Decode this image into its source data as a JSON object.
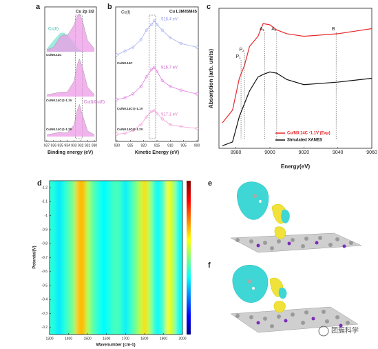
{
  "chart_data": [
    {
      "type": "line",
      "panel": "a",
      "title": "Cu 2p 3/2",
      "xlabel": "Binding energy (eV)",
      "annotations": [
        "Cu(II)",
        "Cu(I)/Cu(0)"
      ],
      "x": [
        937,
        936,
        935,
        934.5,
        934,
        933,
        932.5,
        932.2,
        931.8,
        931,
        930
      ],
      "xlim": [
        937.3,
        929.7
      ],
      "xticks": [
        937,
        936,
        935,
        934,
        933,
        932,
        931,
        930
      ],
      "highlight": [
        932.8,
        931.8
      ],
      "satellite": {
        "color": "#8fe8d8",
        "values": [
          0.08,
          0.3,
          0.5,
          0.5,
          0.45,
          0.25,
          0.1,
          0.05,
          0.02,
          0,
          0
        ]
      },
      "series": [
        {
          "name": "Cu/N0.14C",
          "color": "#ee9be6",
          "values": [
            0.05,
            0.12,
            0.4,
            0.45,
            0.42,
            0.7,
            0.95,
            1.0,
            0.85,
            0.3,
            0.08
          ]
        },
        {
          "name": "Cu/N0.14C@-1.1V",
          "color": "#ee9be6",
          "values": [
            0.05,
            0.08,
            0.12,
            0.12,
            0.12,
            0.4,
            0.85,
            1.0,
            0.8,
            0.25,
            0.05
          ]
        },
        {
          "name": "Cu/N0.14C@-1.2V",
          "color": "#ee9be6",
          "values": [
            0.05,
            0.08,
            0.12,
            0.1,
            0.1,
            0.3,
            0.7,
            0.85,
            0.6,
            0.15,
            0.05
          ]
        }
      ]
    },
    {
      "type": "scatter",
      "panel": "b",
      "title": "Cu L3M45M45",
      "xlabel": "Kinetic Energy (eV)",
      "annotations": [
        "Cu(I)",
        "916.4 eV",
        "916.7 eV",
        "917.1 eV"
      ],
      "x": [
        930,
        927,
        924,
        921,
        919,
        917,
        916,
        915,
        913,
        910,
        906,
        900
      ],
      "xlim": [
        930.5,
        899.5
      ],
      "xticks": [
        930,
        925,
        920,
        915,
        910,
        905,
        900
      ],
      "highlight": [
        918,
        915.5
      ],
      "series": [
        {
          "name": "Cu/N0.14C",
          "color": "#a5adf0",
          "values": [
            0.1,
            0.2,
            0.3,
            0.5,
            0.75,
            0.9,
            1.0,
            0.9,
            0.75,
            0.55,
            0.4,
            0.3
          ]
        },
        {
          "name": "Cu/N0.14C@-1.1V",
          "color": "#e07ae0",
          "values": [
            0.1,
            0.15,
            0.25,
            0.45,
            0.7,
            0.9,
            0.95,
            0.85,
            0.6,
            0.45,
            0.35,
            0.25
          ]
        },
        {
          "name": "Cu/N0.14C@-1.2V",
          "color": "#f29ad6",
          "values": [
            0.1,
            0.12,
            0.2,
            0.35,
            0.55,
            0.7,
            0.72,
            0.65,
            0.5,
            0.35,
            0.3,
            0.25
          ]
        }
      ]
    },
    {
      "type": "line",
      "panel": "c",
      "xlabel": "Energy(eV)",
      "ylabel": "Absorption (arb. units)",
      "x": [
        8972,
        8978,
        8982,
        8985,
        8988,
        8993,
        8996,
        9000,
        9004,
        9010,
        9020,
        9040,
        9060
      ],
      "xlim": [
        8970,
        9060
      ],
      "xticks": [
        8980,
        9000,
        9020,
        9040,
        9060
      ],
      "ylim": [
        0,
        1.1
      ],
      "markers": [
        {
          "text": "P",
          "sub": "1",
          "x": 8983
        },
        {
          "text": "P",
          "sub": "2",
          "x": 8985
        },
        {
          "text": "A",
          "sub": "1",
          "x": 8997
        },
        {
          "text": "A",
          "sub": "2",
          "x": 9004
        },
        {
          "text": "B",
          "sub": "",
          "x": 9039
        }
      ],
      "series": [
        {
          "name": "Cu/N0.14C -1.1V (Exp)",
          "color": "#e8262a",
          "values": [
            0.2,
            0.3,
            0.55,
            0.65,
            0.8,
            0.88,
            0.98,
            0.97,
            0.93,
            0.9,
            0.88,
            0.9,
            0.94
          ]
        },
        {
          "name": "Simulated XANES",
          "color": "#111111",
          "values": [
            0.02,
            0.05,
            0.25,
            0.35,
            0.45,
            0.56,
            0.58,
            0.6,
            0.59,
            0.54,
            0.5,
            0.52,
            0.55
          ]
        }
      ]
    },
    {
      "type": "heatmap",
      "panel": "d",
      "xlabel": "Wavenumber (cm-1)",
      "ylabel": "Potential(V)",
      "x": [
        1300,
        1325,
        1350,
        1375,
        1400,
        1425,
        1450,
        1475,
        1500,
        1525,
        1550,
        1575,
        1600,
        1625,
        1650,
        1675,
        1700,
        1725,
        1750,
        1775,
        1800,
        1825,
        1850,
        1875,
        1900,
        1925,
        1950,
        1975,
        2000
      ],
      "values": [
        0.42,
        0.4,
        0.35,
        0.4,
        0.45,
        0.5,
        0.68,
        0.7,
        0.55,
        0.47,
        0.42,
        0.38,
        0.38,
        0.42,
        0.45,
        0.42,
        0.36,
        0.42,
        0.48,
        0.55,
        0.66,
        0.55,
        0.42,
        0.37,
        0.45,
        0.62,
        0.55,
        0.4,
        0.36
      ],
      "zlim": [
        0,
        1
      ],
      "xlim": [
        1300,
        2000
      ],
      "xticks": [
        1300,
        1400,
        1500,
        1600,
        1700,
        1800,
        1900,
        2000
      ],
      "ylim": [
        -1.25,
        -0.15
      ],
      "yticks": [
        -1.2,
        -1.1,
        -1,
        -0.9,
        -0.8,
        -0.7,
        -0.6,
        -0.5,
        -0.4,
        -0.3,
        -0.2
      ]
    }
  ],
  "figure": {
    "panels": [
      "e",
      "f"
    ],
    "watermark": "团簇科学"
  }
}
